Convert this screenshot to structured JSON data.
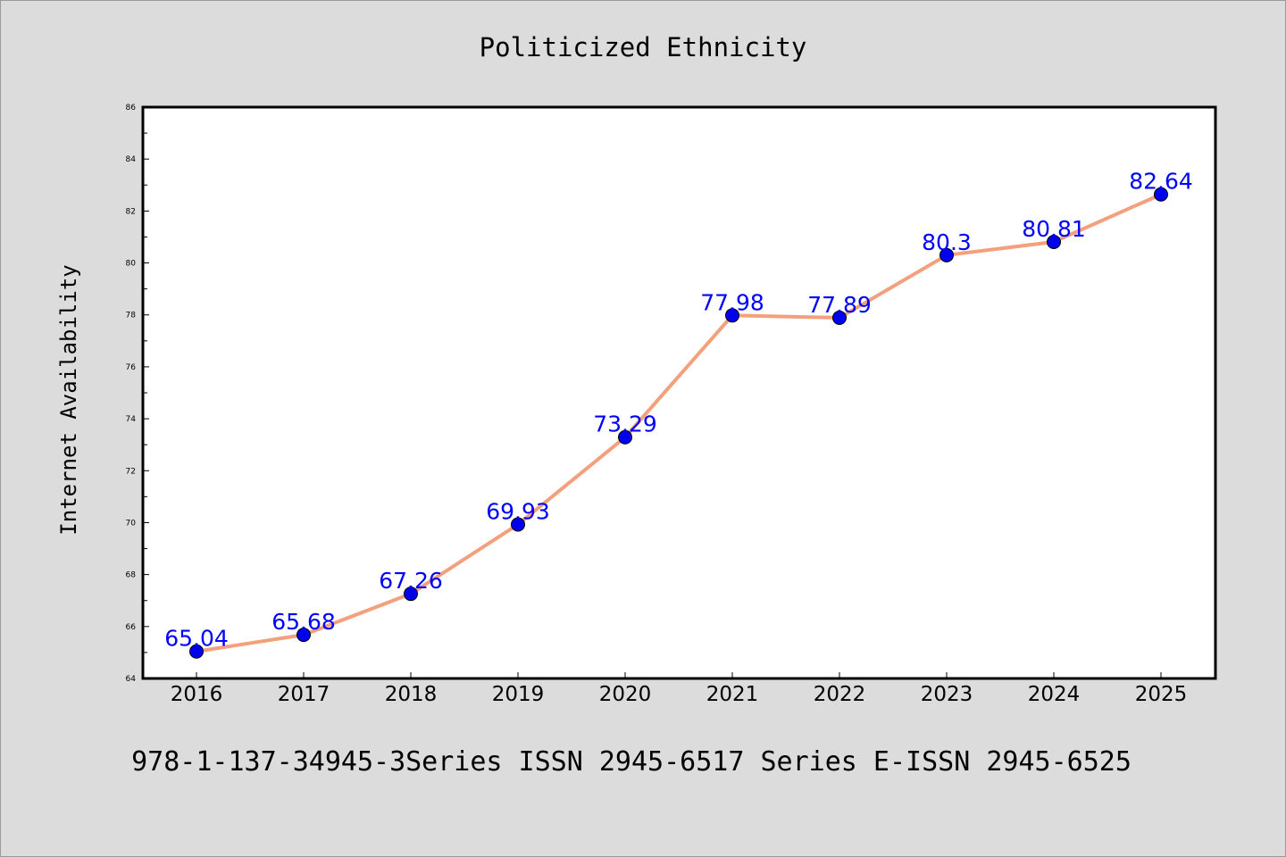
{
  "chart_data": {
    "type": "line",
    "title": "Politicized Ethnicity",
    "xlabel": "",
    "ylabel": "Internet Availability",
    "categories": [
      "2016",
      "2017",
      "2018",
      "2019",
      "2020",
      "2021",
      "2022",
      "2023",
      "2024",
      "2025"
    ],
    "series": [
      {
        "values": [
          65.04,
          65.68,
          67.26,
          69.93,
          73.29,
          77.98,
          77.89,
          80.3,
          80.81,
          82.64
        ],
        "labels": [
          "65.04",
          "65.68",
          "67.26",
          "69.93",
          "73.29",
          "77.98",
          "77.89",
          "80.3",
          "80.81",
          "82.64"
        ],
        "line_color": "#f4a07c",
        "marker_color": "#0000ee"
      }
    ],
    "ylim": [
      64,
      86
    ],
    "yticks": [
      "64",
      "66",
      "68",
      "70",
      "72",
      "74",
      "76",
      "78",
      "80",
      "82",
      "84",
      "86"
    ],
    "grid": false,
    "legend": "none"
  },
  "footer": {
    "text": "978-1-137-34945-3Series ISSN 2945-6517 Series E-ISSN 2945-6525"
  },
  "colors": {
    "background": "#dcdcdc",
    "plot_background": "#ffffff",
    "label_color": "#0000ff"
  }
}
